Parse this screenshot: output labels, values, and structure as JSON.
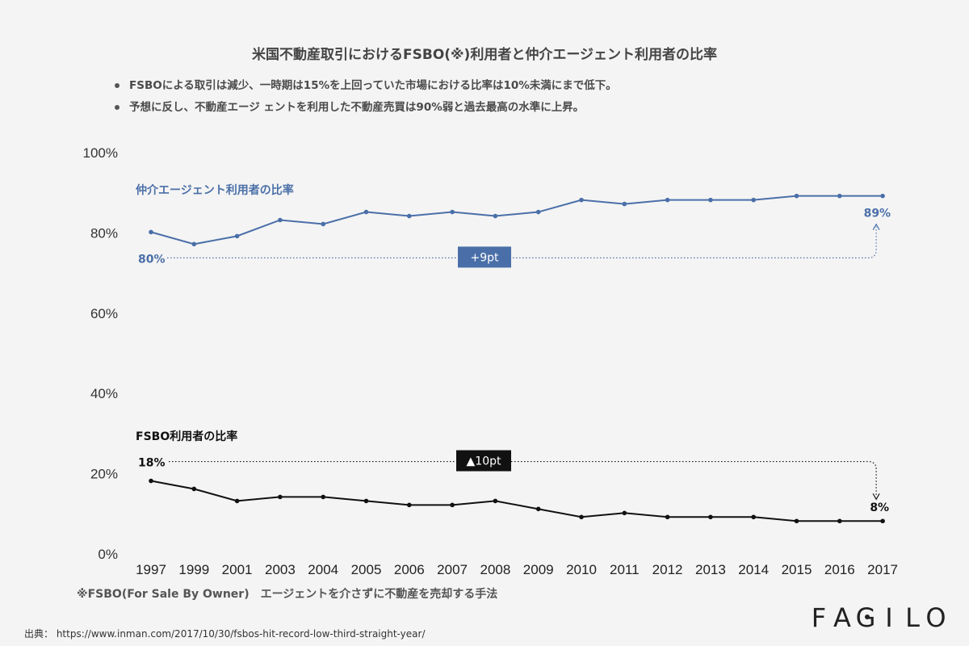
{
  "title": "米国不動産取引におけるFSBO(※)利用者と仲介エージェント利用者の比率",
  "bullets": [
    "FSBOによる取引は減少、一時期は15%を上回っていた市場における比率は10%未満にまで低下。",
    "予想に反し、不動産エージ ェントを利用した不動産売買は90%弱と過去最高の水準に上昇。"
  ],
  "footnote": "※FSBO(For Sale By Owner)　エージェントを介さずに不動産を売却する手法",
  "source": "出典： https://www.inman.com/2017/10/30/fsbos-hit-record-low-third-straight-year/",
  "logo": {
    "text": "FAGILO",
    "letters": [
      "F",
      "A",
      "G",
      "I",
      "L",
      "O"
    ]
  },
  "colors": {
    "agent": "#4a6fa8",
    "fsbo": "#111111",
    "axis": "#333333"
  },
  "chart_data": {
    "type": "line",
    "categories": [
      "1997",
      "1999",
      "2001",
      "2003",
      "2004",
      "2005",
      "2006",
      "2007",
      "2008",
      "2009",
      "2010",
      "2011",
      "2012",
      "2013",
      "2014",
      "2015",
      "2016",
      "2017"
    ],
    "ylim": [
      0,
      100
    ],
    "yticks": [
      "0%",
      "20%",
      "40%",
      "60%",
      "80%",
      "100%"
    ],
    "ytick_values": [
      0,
      20,
      40,
      60,
      80,
      100
    ],
    "grid": false,
    "series": [
      {
        "name": "仲介エージェント利用者の比率",
        "values": [
          80,
          77,
          79,
          83,
          82,
          85,
          84,
          85,
          84,
          85,
          88,
          87,
          88,
          88,
          88,
          89,
          89,
          89
        ],
        "start_label": "80%",
        "end_label": "89%",
        "change_label": "+9pt"
      },
      {
        "name": "FSBO利用者の比率",
        "values": [
          18,
          16,
          13,
          14,
          14,
          13,
          12,
          12,
          13,
          11,
          9,
          10,
          9,
          9,
          9,
          8,
          8,
          8
        ],
        "start_label": "18%",
        "end_label": "8%",
        "change_label": "▲10pt"
      }
    ]
  }
}
